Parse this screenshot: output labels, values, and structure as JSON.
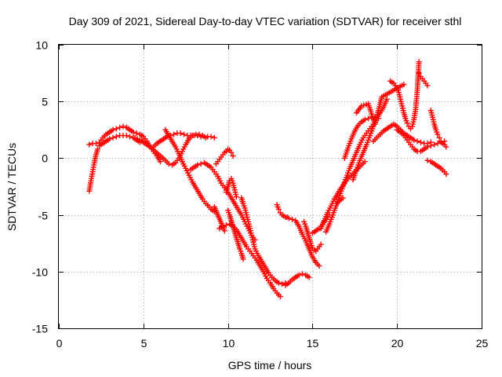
{
  "chart_data": {
    "type": "scatter",
    "title": "Day 309 of 2021, Sidereal Day-to-day VTEC variation (SDTVAR) for receiver sthl",
    "xlabel": "GPS time / hours",
    "ylabel": "SDTVAR / TECUs",
    "xlim": [
      0,
      25
    ],
    "ylim": [
      -15,
      10
    ],
    "xticks": [
      0,
      5,
      10,
      15,
      20,
      25
    ],
    "xtick_labels": [
      "0",
      "5",
      "10",
      "15",
      "20",
      "25"
    ],
    "yticks": [
      -15,
      -10,
      -5,
      0,
      5,
      10
    ],
    "ytick_labels": [
      "-15",
      "-10",
      "-5",
      "0",
      "5",
      "10"
    ],
    "grid": true,
    "marker": "plus",
    "color": "#ff0000",
    "series": [
      {
        "name": "s1",
        "x": [
          1.8,
          1.9,
          2.0,
          2.1,
          2.2,
          2.3,
          2.4,
          2.6,
          2.8,
          3.0,
          3.2,
          3.4,
          3.6,
          3.8,
          4.0,
          4.2,
          4.4,
          4.6,
          4.8
        ],
        "y": [
          -2.9,
          -2.0,
          -1.2,
          -0.4,
          0.3,
          0.8,
          1.1,
          1.3,
          1.5,
          1.7,
          1.8,
          1.9,
          2.0,
          2.0,
          2.0,
          1.9,
          1.8,
          1.6,
          1.4
        ]
      },
      {
        "name": "s2",
        "x": [
          1.8,
          2.0,
          2.2,
          2.4,
          2.6,
          2.8,
          3.0,
          3.2,
          3.4,
          3.6,
          3.8,
          4.0,
          4.2,
          4.4,
          4.6,
          4.8,
          5.0,
          5.2,
          5.4,
          5.6,
          5.8,
          6.0
        ],
        "y": [
          1.2,
          1.3,
          1.3,
          1.4,
          1.8,
          2.1,
          2.3,
          2.5,
          2.6,
          2.7,
          2.8,
          2.7,
          2.5,
          2.3,
          2.2,
          2.1,
          1.9,
          1.5,
          1.0,
          0.6,
          0.2,
          -0.3
        ]
      },
      {
        "name": "s3",
        "x": [
          4.5,
          4.8,
          5.1,
          5.4,
          5.7,
          6.0,
          6.3,
          6.5,
          6.7,
          6.9,
          7.1,
          7.3,
          7.5,
          7.7,
          7.9,
          8.1,
          8.3,
          8.5,
          8.7
        ],
        "y": [
          1.8,
          1.6,
          1.3,
          1.0,
          0.6,
          0.2,
          -0.2,
          -0.5,
          -0.6,
          -0.4,
          0.0,
          0.6,
          1.2,
          1.7,
          2.0,
          2.1,
          2.1,
          2.0,
          1.8
        ]
      },
      {
        "name": "s4",
        "x": [
          6.3,
          6.5,
          6.7,
          6.9,
          7.1,
          7.3,
          7.5,
          7.7,
          7.9,
          8.1,
          8.3,
          8.5,
          8.7,
          8.9,
          9.0,
          9.1,
          9.2
        ],
        "y": [
          2.5,
          2.0,
          1.5,
          1.0,
          0.4,
          -0.3,
          -0.9,
          -1.5,
          -2.1,
          -2.6,
          -3.1,
          -3.6,
          -4.0,
          -4.3,
          -4.5,
          -4.6,
          -4.7
        ]
      },
      {
        "name": "s5",
        "x": [
          5.6,
          5.8,
          6.0,
          6.2,
          6.4,
          6.6,
          6.8,
          7.0,
          7.2,
          7.4,
          7.6,
          7.8,
          8.0,
          8.2,
          8.4,
          8.6,
          8.8,
          9.0,
          9.2
        ],
        "y": [
          1.0,
          1.3,
          1.5,
          1.7,
          1.9,
          2.0,
          2.1,
          2.2,
          2.2,
          2.1,
          2.0,
          2.0,
          2.0,
          2.0,
          1.9,
          1.9,
          1.9,
          1.9,
          1.8
        ]
      },
      {
        "name": "s6",
        "x": [
          7.8,
          8.0,
          8.2,
          8.4,
          8.6,
          8.8,
          9.0,
          9.2,
          9.4,
          9.6,
          9.8,
          10.0,
          10.2,
          10.4,
          10.6,
          10.8,
          11.0,
          11.2,
          11.4,
          11.6
        ],
        "y": [
          -1.0,
          -0.8,
          -0.6,
          -0.5,
          -0.4,
          -0.6,
          -0.8,
          -1.2,
          -1.6,
          -2.2,
          -2.6,
          -3.0,
          -3.5,
          -4.0,
          -4.5,
          -5.0,
          -5.6,
          -6.2,
          -6.8,
          -7.2
        ]
      },
      {
        "name": "s7",
        "x": [
          9.3,
          9.4,
          9.5,
          9.6,
          9.7,
          9.8,
          9.9,
          10.0,
          10.1,
          10.2,
          10.3
        ],
        "y": [
          -0.5,
          -0.3,
          -0.1,
          0.1,
          0.3,
          0.5,
          0.6,
          0.8,
          0.7,
          0.5,
          0.2
        ]
      },
      {
        "name": "s8",
        "x": [
          9.5,
          9.7,
          9.9,
          10.1,
          10.3,
          10.5,
          10.7,
          10.9,
          11.1,
          11.3,
          11.5,
          11.7,
          11.9,
          12.1,
          12.3,
          12.5,
          12.7,
          12.9,
          13.1
        ],
        "y": [
          -6.2,
          -6.0,
          -5.9,
          -5.8,
          -6.0,
          -6.3,
          -6.8,
          -7.3,
          -7.8,
          -8.2,
          -8.6,
          -9.0,
          -9.5,
          -10.0,
          -10.6,
          -11.0,
          -11.5,
          -11.9,
          -12.2
        ]
      },
      {
        "name": "s9",
        "x": [
          10.8,
          10.9,
          11.0,
          11.1,
          11.2,
          11.3,
          11.4,
          11.5,
          11.6,
          11.8,
          12.0,
          12.2,
          12.4,
          12.6,
          12.8,
          13.0,
          13.2,
          13.4
        ],
        "y": [
          -3.5,
          -4.0,
          -4.4,
          -5.0,
          -5.6,
          -6.2,
          -6.8,
          -7.4,
          -8.0,
          -8.6,
          -9.1,
          -9.6,
          -10.1,
          -10.5,
          -10.8,
          -11.0,
          -11.1,
          -11.0
        ]
      },
      {
        "name": "s10",
        "x": [
          9.9,
          10.0,
          10.1,
          10.2,
          10.3,
          10.4,
          10.5
        ],
        "y": [
          -3.0,
          -2.5,
          -2.0,
          -1.8,
          -2.2,
          -2.8,
          -3.4
        ]
      },
      {
        "name": "s11",
        "x": [
          10.0,
          10.1,
          10.2,
          10.3,
          10.4,
          10.5,
          10.6,
          10.7,
          10.8,
          10.9
        ],
        "y": [
          -4.6,
          -5.0,
          -5.5,
          -6.0,
          -6.5,
          -7.0,
          -7.5,
          -8.0,
          -8.4,
          -8.9
        ]
      },
      {
        "name": "s12",
        "x": [
          12.9,
          13.0,
          13.1,
          13.2,
          13.3,
          13.4,
          13.5,
          13.6,
          13.8,
          14.0,
          14.2,
          14.4,
          14.6,
          14.8,
          15.0,
          15.2,
          15.4
        ],
        "y": [
          -4.1,
          -4.5,
          -4.8,
          -5.0,
          -5.1,
          -5.2,
          -5.2,
          -5.3,
          -5.4,
          -5.5,
          -6.0,
          -6.7,
          -7.3,
          -8.0,
          -8.7,
          -9.2,
          -9.5
        ]
      },
      {
        "name": "s13",
        "x": [
          13.4,
          13.6,
          13.8,
          14.0,
          14.2,
          14.4,
          14.6,
          14.8
        ],
        "y": [
          -11.2,
          -11.0,
          -10.7,
          -10.5,
          -10.3,
          -10.2,
          -10.3,
          -10.5
        ]
      },
      {
        "name": "s14",
        "x": [
          14.5,
          14.6,
          14.7,
          14.8,
          14.9,
          15.0,
          15.1,
          15.2,
          15.3,
          15.4,
          15.5
        ],
        "y": [
          -5.6,
          -6.0,
          -6.5,
          -7.0,
          -7.5,
          -7.9,
          -8.1,
          -8.2,
          -8.0,
          -7.8,
          -7.6
        ]
      },
      {
        "name": "s15",
        "x": [
          15.0,
          15.1,
          15.2,
          15.3,
          15.4,
          15.5,
          15.6,
          15.7,
          15.8,
          15.9,
          16.0
        ],
        "y": [
          -6.6,
          -6.5,
          -6.4,
          -6.3,
          -6.2,
          -6.0,
          -5.8,
          -5.6,
          -5.4,
          -5.2,
          -5.0
        ]
      },
      {
        "name": "s16",
        "x": [
          15.8,
          16.0,
          16.2,
          16.4,
          16.6,
          16.8,
          17.0,
          17.2,
          17.4,
          17.6,
          17.8,
          18.0,
          18.2,
          18.4,
          18.6
        ],
        "y": [
          -6.5,
          -5.8,
          -5.0,
          -4.2,
          -3.3,
          -2.5,
          -1.7,
          -0.9,
          -0.2,
          0.5,
          1.2,
          1.8,
          2.2,
          2.6,
          3.0
        ]
      },
      {
        "name": "s17",
        "x": [
          15.5,
          15.7,
          15.9,
          16.1,
          16.3,
          16.5,
          16.7,
          16.9,
          17.1,
          17.3,
          17.5,
          17.7,
          17.9,
          18.1
        ],
        "y": [
          -6.2,
          -5.5,
          -4.8,
          -4.2,
          -3.6,
          -3.1,
          -2.6,
          -2.2,
          -1.8,
          -1.5,
          -1.2,
          -0.9,
          -0.6,
          -0.3
        ]
      },
      {
        "name": "s18",
        "x": [
          16.9,
          17.1,
          17.3,
          17.5,
          17.7,
          17.9,
          18.1,
          18.3,
          18.5,
          18.7,
          18.9
        ],
        "y": [
          0.0,
          0.9,
          1.7,
          2.4,
          2.9,
          3.2,
          3.4,
          3.5,
          3.6,
          3.6,
          3.5
        ]
      },
      {
        "name": "s19",
        "x": [
          17.4,
          17.6,
          17.8,
          18.0,
          18.2,
          18.4,
          18.6,
          18.8,
          19.0,
          19.2,
          19.4
        ],
        "y": [
          -1.9,
          -1.0,
          -0.2,
          0.5,
          1.2,
          2.0,
          2.8,
          3.5,
          4.0,
          4.5,
          5.2
        ]
      },
      {
        "name": "s20",
        "x": [
          19.6,
          19.7,
          19.8,
          19.9,
          20.0,
          20.1,
          20.2,
          20.3,
          20.4,
          20.5,
          20.6,
          20.7,
          20.8,
          20.9,
          21.0,
          21.1,
          21.2,
          21.3
        ],
        "y": [
          6.8,
          6.7,
          6.6,
          6.4,
          6.2,
          5.8,
          5.2,
          4.6,
          4.0,
          3.5,
          3.1,
          2.8,
          2.6,
          2.8,
          3.4,
          4.3,
          6.0,
          8.5
        ]
      },
      {
        "name": "s21",
        "x": [
          18.6,
          18.8,
          19.0,
          19.2,
          19.4,
          19.6,
          19.8,
          20.0,
          20.2,
          20.4,
          20.6,
          20.8,
          21.0,
          21.2,
          21.4,
          21.6,
          21.8,
          22.0
        ],
        "y": [
          1.5,
          1.8,
          2.1,
          2.4,
          2.6,
          2.8,
          3.0,
          2.8,
          2.5,
          2.2,
          2.0,
          1.8,
          1.6,
          1.5,
          1.4,
          1.3,
          1.3,
          1.4
        ]
      },
      {
        "name": "s22",
        "x": [
          20.0,
          20.2,
          20.4,
          20.6,
          20.8,
          21.0,
          21.2,
          21.4,
          21.6,
          21.8,
          22.0,
          22.2,
          22.4,
          22.6,
          22.8
        ],
        "y": [
          2.5,
          2.3,
          2.0,
          1.6,
          1.2,
          0.8,
          0.6,
          0.6,
          0.8,
          1.0,
          1.1,
          1.2,
          1.3,
          1.4,
          1.5
        ]
      },
      {
        "name": "s23",
        "x": [
          21.3,
          21.4,
          21.5,
          21.6,
          21.7,
          21.8
        ],
        "y": [
          7.5,
          7.2,
          7.0,
          6.8,
          6.6,
          6.4
        ]
      },
      {
        "name": "s24",
        "x": [
          22.0,
          22.1,
          22.2,
          22.3,
          22.4,
          22.5,
          22.6,
          22.7,
          22.8,
          22.9
        ],
        "y": [
          4.2,
          3.6,
          3.0,
          2.5,
          2.1,
          1.8,
          1.5,
          1.3,
          1.2,
          1.0
        ]
      },
      {
        "name": "s25",
        "x": [
          21.8,
          22.0,
          22.2,
          22.4,
          22.6,
          22.8,
          22.9
        ],
        "y": [
          -0.2,
          -0.3,
          -0.5,
          -0.7,
          -0.9,
          -1.2,
          -1.4
        ]
      },
      {
        "name": "s26",
        "x": [
          17.6,
          17.9,
          18.3,
          18.7,
          19.1,
          20.4,
          16.4,
          16.8,
          9.2,
          9.8
        ],
        "y": [
          4.0,
          4.6,
          4.8,
          3.0,
          5.4,
          6.5,
          -4.0,
          -3.5,
          -4.3,
          -6.4
        ]
      }
    ]
  }
}
